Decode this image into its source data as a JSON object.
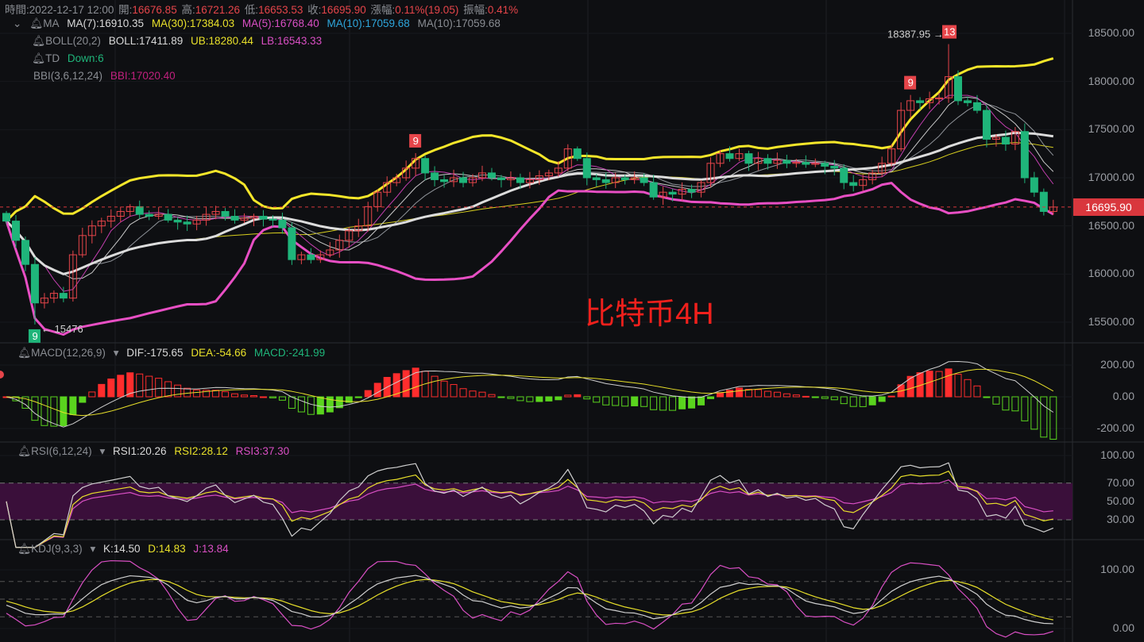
{
  "header": {
    "time_label": "時間:",
    "time": "2022-12-17 12:00",
    "open_label": "開:",
    "open": "16676.85",
    "high_label": "高:",
    "high": "16721.26",
    "low_label": "低:",
    "low": "16653.53",
    "close_label": "收:",
    "close": "16695.90",
    "change_label": "漲幅:",
    "change": "0.11%(19.05)",
    "amplitude_label": "振幅:",
    "amplitude": "0.41%"
  },
  "legends": {
    "ma": {
      "name": "MA",
      "ma7": "MA(7):16910.35",
      "ma30": "MA(30):17384.03",
      "ma5": "MA(5):16768.40",
      "ma10a": "MA(10):17059.68",
      "ma10b": "MA(10):17059.68"
    },
    "boll": {
      "name": "BOLL(20,2)",
      "boll": "BOLL:17411.89",
      "ub": "UB:18280.44",
      "lb": "LB:16543.33"
    },
    "td": {
      "name": "TD",
      "value": "Down:6"
    },
    "bbi": {
      "name": "BBI(3,6,12,24)",
      "value": "BBI:17020.40"
    },
    "macd": {
      "name": "MACD(12,26,9)",
      "dif": "DIF:-175.65",
      "dea": "DEA:-54.66",
      "macd": "MACD:-241.99"
    },
    "rsi": {
      "name": "RSI(6,12,24)",
      "rsi1": "RSI1:20.26",
      "rsi2": "RSI2:28.12",
      "rsi3": "RSI3:37.30"
    },
    "kdj": {
      "name": "KDJ(9,3,3)",
      "k": "K:14.50",
      "d": "D:14.83",
      "j": "J:13.84"
    }
  },
  "watermark": "比特币4H",
  "colors": {
    "up": "#e6454a",
    "down": "#1fb57a",
    "macd_up": "#ff2d2d",
    "macd_down": "#5ad41e",
    "ub": "#f5e62a",
    "mid": "#dcdcdc",
    "lb": "#e84fc4",
    "rsi_band": "#3a0f3a"
  },
  "chart_data": [
    {
      "type": "candlestick",
      "title": "",
      "closes": [
        16550,
        16350,
        16100,
        15700,
        15750,
        15800,
        15750,
        16200,
        16400,
        16500,
        16550,
        16600,
        16650,
        16700,
        16620,
        16600,
        16620,
        16560,
        16540,
        16520,
        16560,
        16620,
        16650,
        16600,
        16560,
        16580,
        16600,
        16570,
        16560,
        16480,
        16150,
        16200,
        16150,
        16200,
        16250,
        16350,
        16450,
        16500,
        16700,
        16850,
        16950,
        17000,
        17100,
        17200,
        17050,
        16980,
        16960,
        17000,
        16950,
        17000,
        17050,
        17000,
        16980,
        17000,
        16950,
        16980,
        17020,
        17050,
        17100,
        17300,
        17200,
        17000,
        16980,
        16950,
        17000,
        16980,
        17000,
        16950,
        16800,
        16850,
        16830,
        16880,
        16850,
        16950,
        17150,
        17250,
        17200,
        17250,
        17150,
        17200,
        17150,
        17180,
        17150,
        17160,
        17140,
        17150,
        17120,
        17100,
        16950,
        16920,
        16980,
        17050,
        17150,
        17300,
        17700,
        17800,
        17780,
        17820,
        17830,
        18050,
        17800,
        17780,
        17700,
        17400,
        17420,
        17350,
        17480,
        17000,
        16850,
        16650,
        16695.9
      ],
      "ylim": [
        15300,
        18700
      ],
      "yticks": [
        "18500.00",
        "18000.00",
        "17500.00",
        "17000.00",
        "16500.00",
        "16000.00",
        "15500.00"
      ],
      "ytick_values": [
        18500,
        18000,
        17500,
        17000,
        16500,
        16000,
        15500
      ],
      "last_price": "16695.90",
      "last_price_value": 16695.9,
      "annotations": [
        {
          "text": "18387.95 →",
          "value": 18387.95,
          "index": 99
        },
        {
          "text": "← 15476",
          "value": 15476,
          "index": 3
        },
        {
          "text": "13",
          "kind": "td-up",
          "index": 99
        },
        {
          "text": "9",
          "kind": "td-up",
          "index": 95
        },
        {
          "text": "9",
          "kind": "td-up",
          "index": 43
        },
        {
          "text": "9",
          "kind": "td-down",
          "index": 3
        }
      ]
    },
    {
      "type": "bar",
      "title": "MACD",
      "yticks": [
        "200.00",
        "0.00",
        "-200.00"
      ],
      "ytick_values": [
        200,
        0,
        -200
      ],
      "ylim": [
        -340,
        340
      ]
    },
    {
      "type": "line",
      "title": "RSI",
      "yticks": [
        "100.00",
        "70.00",
        "50.00",
        "30.00"
      ],
      "ytick_values": [
        100,
        70,
        50,
        30
      ],
      "ylim": [
        -15,
        115
      ],
      "band": [
        30,
        70
      ]
    },
    {
      "type": "line",
      "title": "KDJ",
      "yticks": [
        "100.00",
        "0.00"
      ],
      "ytick_values": [
        100,
        0
      ],
      "ylim": [
        -20,
        125
      ],
      "guides": [
        80,
        50,
        20
      ]
    }
  ]
}
